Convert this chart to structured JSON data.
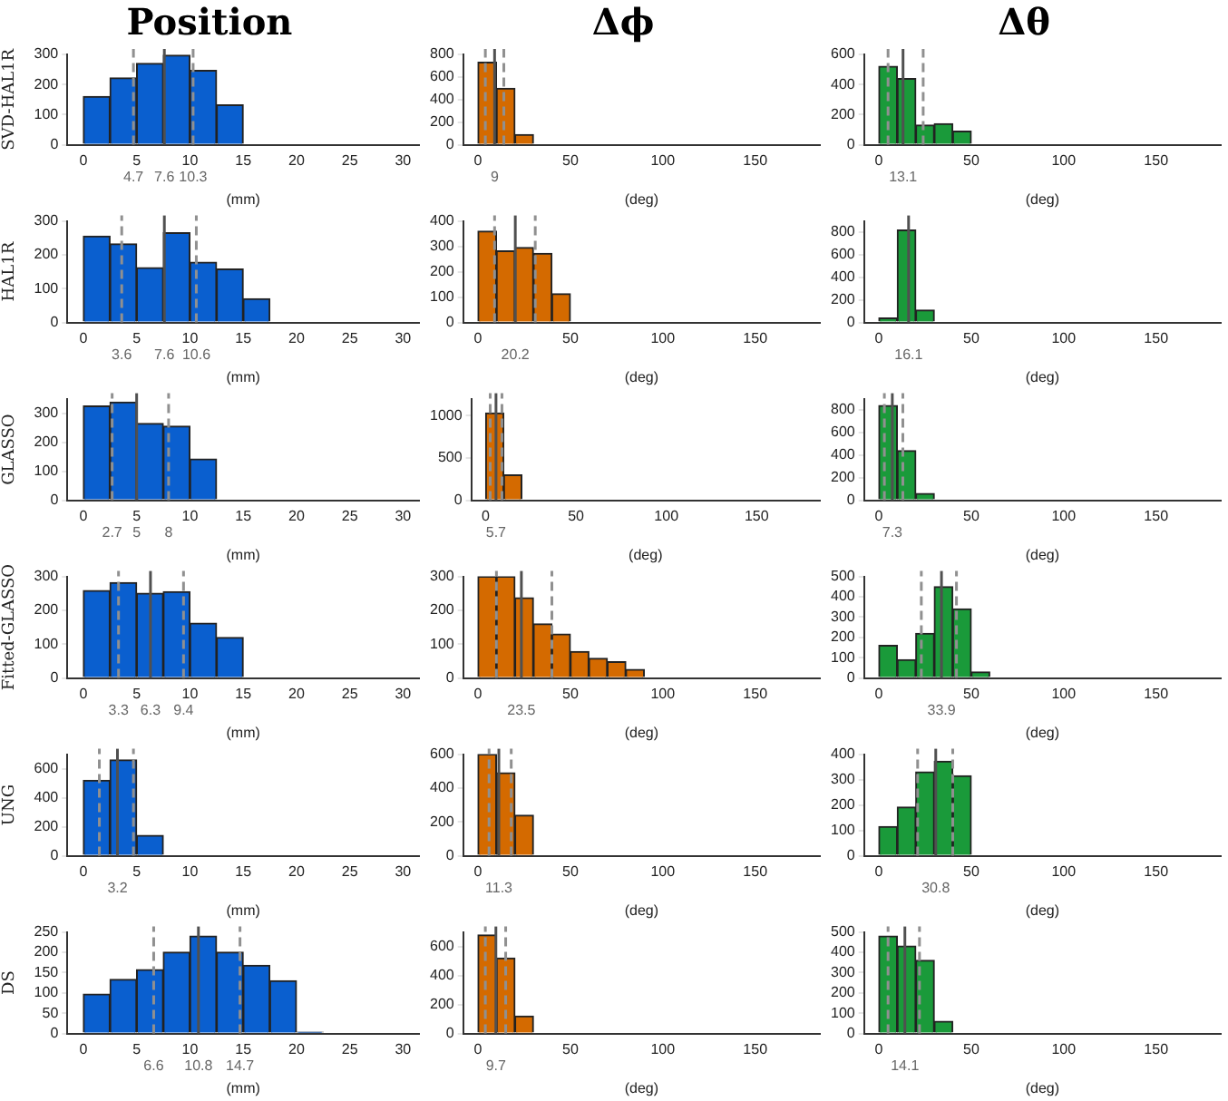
{
  "chart_data": [
    {
      "type": "histogram",
      "title": "Position",
      "ylabel": "SVD-HAL1R",
      "xlabel": "(mm)",
      "bins": [
        0,
        2.5,
        5,
        7.5,
        10,
        12.5,
        15
      ],
      "values": [
        160,
        222,
        270,
        297,
        247,
        132
      ],
      "color": "#0a5fcf",
      "xlim": [
        -1.5,
        31.5
      ],
      "xticks": [
        0,
        5,
        10,
        15,
        20,
        25,
        30
      ],
      "ylim": [
        0,
        300
      ],
      "yticks": [
        0,
        100,
        200,
        300
      ],
      "ref_lines": [
        {
          "axis": "x",
          "value": 4.7,
          "label": "4.7",
          "line_style": "dashed",
          "color": "#909090"
        },
        {
          "axis": "x",
          "value": 7.6,
          "label": "7.6",
          "line_style": "solid",
          "color": "#505050"
        },
        {
          "axis": "x",
          "value": 10.3,
          "label": "10.3",
          "line_style": "dashed",
          "color": "#909090"
        }
      ]
    },
    {
      "type": "histogram",
      "title": "Δϕ",
      "xlabel": "(deg)",
      "bins": [
        0,
        10,
        20,
        30
      ],
      "values": [
        730,
        500,
        90
      ],
      "color": "#d46a00",
      "xlim": [
        -8,
        185
      ],
      "xticks": [
        0,
        50,
        100,
        150
      ],
      "ylim": [
        0,
        800
      ],
      "yticks": [
        0,
        200,
        400,
        600,
        800
      ],
      "ref_lines": [
        {
          "axis": "x",
          "value": 4,
          "line_style": "dashed",
          "color": "#909090"
        },
        {
          "axis": "x",
          "value": 9,
          "label": "9",
          "line_style": "solid",
          "color": "#505050"
        },
        {
          "axis": "x",
          "value": 14,
          "line_style": "dashed",
          "color": "#909090"
        }
      ]
    },
    {
      "type": "histogram",
      "title": "Δθ",
      "xlabel": "(deg)",
      "bins": [
        0,
        10,
        20,
        30,
        40,
        50
      ],
      "values": [
        520,
        440,
        130,
        140,
        90
      ],
      "color": "#1a9a3a",
      "xlim": [
        -8,
        185
      ],
      "xticks": [
        0,
        50,
        100,
        150
      ],
      "ylim": [
        0,
        600
      ],
      "yticks": [
        0,
        200,
        400,
        600
      ],
      "ref_lines": [
        {
          "axis": "x",
          "value": 5,
          "line_style": "dashed",
          "color": "#909090"
        },
        {
          "axis": "x",
          "value": 13.1,
          "label": "13.1",
          "line_style": "solid",
          "color": "#505050"
        },
        {
          "axis": "x",
          "value": 24,
          "line_style": "dashed",
          "color": "#909090"
        }
      ]
    },
    {
      "type": "histogram",
      "ylabel": "HAL1R",
      "xlabel": "(mm)",
      "bins": [
        0,
        2.5,
        5,
        7.5,
        10,
        12.5,
        15,
        17.5
      ],
      "values": [
        255,
        232,
        162,
        265,
        178,
        158,
        70
      ],
      "color": "#0a5fcf",
      "xlim": [
        -1.5,
        31.5
      ],
      "xticks": [
        0,
        5,
        10,
        15,
        20,
        25,
        30
      ],
      "ylim": [
        0,
        300
      ],
      "yticks": [
        0,
        100,
        200,
        300
      ],
      "ref_lines": [
        {
          "axis": "x",
          "value": 3.6,
          "label": "3.6",
          "line_style": "dashed",
          "color": "#909090"
        },
        {
          "axis": "x",
          "value": 7.6,
          "label": "7.6",
          "line_style": "solid",
          "color": "#505050"
        },
        {
          "axis": "x",
          "value": 10.6,
          "label": "10.6",
          "line_style": "dashed",
          "color": "#909090"
        }
      ]
    },
    {
      "type": "histogram",
      "xlabel": "(deg)",
      "bins": [
        0,
        10,
        20,
        30,
        40,
        50
      ],
      "values": [
        360,
        282,
        295,
        272,
        113
      ],
      "color": "#d46a00",
      "xlim": [
        -8,
        185
      ],
      "xticks": [
        0,
        50,
        100,
        150
      ],
      "ylim": [
        0,
        400
      ],
      "yticks": [
        0,
        100,
        200,
        300,
        400
      ],
      "ref_lines": [
        {
          "axis": "x",
          "value": 9,
          "line_style": "dashed",
          "color": "#909090"
        },
        {
          "axis": "x",
          "value": 20.2,
          "label": "20.2",
          "line_style": "solid",
          "color": "#505050"
        },
        {
          "axis": "x",
          "value": 31,
          "line_style": "dashed",
          "color": "#909090"
        }
      ]
    },
    {
      "type": "histogram",
      "xlabel": "(deg)",
      "bins": [
        0,
        10,
        20,
        30
      ],
      "values": [
        40,
        820,
        110
      ],
      "color": "#1a9a3a",
      "xlim": [
        -8,
        185
      ],
      "xticks": [
        0,
        50,
        100,
        150
      ],
      "ylim": [
        0,
        900
      ],
      "yticks": [
        0,
        200,
        400,
        600,
        800
      ],
      "ref_lines": [
        {
          "axis": "x",
          "value": 16.1,
          "label": "16.1",
          "line_style": "solid",
          "color": "#505050"
        }
      ]
    },
    {
      "type": "histogram",
      "ylabel": "GLASSO",
      "xlabel": "(mm)",
      "bins": [
        0,
        2.5,
        5,
        7.5,
        10,
        12.5
      ],
      "values": [
        325,
        338,
        265,
        255,
        142
      ],
      "color": "#0a5fcf",
      "xlim": [
        -1.5,
        31.5
      ],
      "xticks": [
        0,
        5,
        10,
        15,
        20,
        25,
        30
      ],
      "ylim": [
        0,
        350
      ],
      "yticks": [
        0,
        100,
        200,
        300
      ],
      "ref_lines": [
        {
          "axis": "x",
          "value": 2.7,
          "label": "2.7",
          "line_style": "dashed",
          "color": "#909090"
        },
        {
          "axis": "x",
          "value": 5,
          "label": "5",
          "line_style": "solid",
          "color": "#505050"
        },
        {
          "axis": "x",
          "value": 8,
          "label": "8",
          "line_style": "dashed",
          "color": "#909090"
        }
      ]
    },
    {
      "type": "histogram",
      "xlabel": "(deg)",
      "bins": [
        0,
        10,
        20
      ],
      "values": [
        1030,
        300
      ],
      "color": "#d46a00",
      "xlim": [
        -8,
        185
      ],
      "xticks": [
        0,
        50,
        100,
        150
      ],
      "ylim": [
        0,
        1200
      ],
      "yticks": [
        0,
        500,
        1000
      ],
      "ref_lines": [
        {
          "axis": "x",
          "value": 2.5,
          "line_style": "dashed",
          "color": "#909090"
        },
        {
          "axis": "x",
          "value": 5.7,
          "label": "5.7",
          "line_style": "solid",
          "color": "#505050"
        },
        {
          "axis": "x",
          "value": 9,
          "line_style": "dashed",
          "color": "#909090"
        }
      ]
    },
    {
      "type": "histogram",
      "xlabel": "(deg)",
      "bins": [
        0,
        10,
        20,
        30
      ],
      "values": [
        840,
        440,
        60
      ],
      "color": "#1a9a3a",
      "xlim": [
        -8,
        185
      ],
      "xticks": [
        0,
        50,
        100,
        150
      ],
      "ylim": [
        0,
        900
      ],
      "yticks": [
        0,
        200,
        400,
        600,
        800
      ],
      "ref_lines": [
        {
          "axis": "x",
          "value": 3,
          "line_style": "dashed",
          "color": "#909090"
        },
        {
          "axis": "x",
          "value": 7.3,
          "label": "7.3",
          "line_style": "solid",
          "color": "#505050"
        },
        {
          "axis": "x",
          "value": 13,
          "line_style": "dashed",
          "color": "#909090"
        }
      ]
    },
    {
      "type": "histogram",
      "ylabel": "Fitted-GLASSO",
      "xlabel": "(mm)",
      "bins": [
        0,
        2.5,
        5,
        7.5,
        10,
        12.5,
        15
      ],
      "values": [
        258,
        282,
        250,
        255,
        162,
        120
      ],
      "color": "#0a5fcf",
      "xlim": [
        -1.5,
        31.5
      ],
      "xticks": [
        0,
        5,
        10,
        15,
        20,
        25,
        30
      ],
      "ylim": [
        0,
        300
      ],
      "yticks": [
        0,
        100,
        200,
        300
      ],
      "ref_lines": [
        {
          "axis": "x",
          "value": 3.3,
          "label": "3.3",
          "line_style": "dashed",
          "color": "#909090"
        },
        {
          "axis": "x",
          "value": 6.3,
          "label": "6.3",
          "line_style": "solid",
          "color": "#505050"
        },
        {
          "axis": "x",
          "value": 9.4,
          "label": "9.4",
          "line_style": "dashed",
          "color": "#909090"
        }
      ]
    },
    {
      "type": "histogram",
      "xlabel": "(deg)",
      "bins": [
        0,
        10,
        20,
        30,
        40,
        50,
        60,
        70,
        80,
        90
      ],
      "values": [
        300,
        300,
        237,
        160,
        130,
        78,
        58,
        48,
        25
      ],
      "color": "#d46a00",
      "xlim": [
        -8,
        185
      ],
      "xticks": [
        0,
        50,
        100,
        150
      ],
      "ylim": [
        0,
        300
      ],
      "yticks": [
        0,
        100,
        200,
        300
      ],
      "ref_lines": [
        {
          "axis": "x",
          "value": 10,
          "line_style": "dashed",
          "color": "#909090"
        },
        {
          "axis": "x",
          "value": 23.5,
          "label": "23.5",
          "line_style": "solid",
          "color": "#505050"
        },
        {
          "axis": "x",
          "value": 40,
          "line_style": "dashed",
          "color": "#909090"
        }
      ]
    },
    {
      "type": "histogram",
      "xlabel": "(deg)",
      "bins": [
        0,
        10,
        20,
        30,
        40,
        50,
        60
      ],
      "values": [
        160,
        90,
        220,
        450,
        340,
        30
      ],
      "color": "#1a9a3a",
      "xlim": [
        -8,
        185
      ],
      "xticks": [
        0,
        50,
        100,
        150
      ],
      "ylim": [
        0,
        500
      ],
      "yticks": [
        0,
        100,
        200,
        300,
        400,
        500
      ],
      "ref_lines": [
        {
          "axis": "x",
          "value": 23,
          "line_style": "dashed",
          "color": "#909090"
        },
        {
          "axis": "x",
          "value": 33.9,
          "label": "33.9",
          "line_style": "solid",
          "color": "#505050"
        },
        {
          "axis": "x",
          "value": 42,
          "line_style": "dashed",
          "color": "#909090"
        }
      ]
    },
    {
      "type": "histogram",
      "ylabel": "UNG",
      "xlabel": "(mm)",
      "bins": [
        0,
        2.5,
        5,
        7.5
      ],
      "values": [
        520,
        660,
        140
      ],
      "color": "#0a5fcf",
      "xlim": [
        -1.5,
        31.5
      ],
      "xticks": [
        0,
        5,
        10,
        15,
        20,
        25,
        30
      ],
      "ylim": [
        0,
        700
      ],
      "yticks": [
        0,
        200,
        400,
        600
      ],
      "ref_lines": [
        {
          "axis": "x",
          "value": 1.5,
          "line_style": "dashed",
          "color": "#909090"
        },
        {
          "axis": "x",
          "value": 3.2,
          "label": "3.2",
          "line_style": "solid",
          "color": "#505050"
        },
        {
          "axis": "x",
          "value": 4.7,
          "line_style": "dashed",
          "color": "#909090"
        }
      ]
    },
    {
      "type": "histogram",
      "xlabel": "(deg)",
      "bins": [
        0,
        10,
        20,
        30
      ],
      "values": [
        600,
        490,
        240
      ],
      "color": "#d46a00",
      "xlim": [
        -8,
        185
      ],
      "xticks": [
        0,
        50,
        100,
        150
      ],
      "ylim": [
        0,
        600
      ],
      "yticks": [
        0,
        200,
        400,
        600
      ],
      "ref_lines": [
        {
          "axis": "x",
          "value": 6,
          "line_style": "dashed",
          "color": "#909090"
        },
        {
          "axis": "x",
          "value": 11.3,
          "label": "11.3",
          "line_style": "solid",
          "color": "#505050"
        },
        {
          "axis": "x",
          "value": 18,
          "line_style": "dashed",
          "color": "#909090"
        }
      ]
    },
    {
      "type": "histogram",
      "xlabel": "(deg)",
      "bins": [
        0,
        10,
        20,
        30,
        40,
        50
      ],
      "values": [
        115,
        192,
        330,
        372,
        315
      ],
      "color": "#1a9a3a",
      "xlim": [
        -8,
        185
      ],
      "xticks": [
        0,
        50,
        100,
        150
      ],
      "ylim": [
        0,
        400
      ],
      "yticks": [
        0,
        100,
        200,
        300,
        400
      ],
      "ref_lines": [
        {
          "axis": "x",
          "value": 21,
          "line_style": "dashed",
          "color": "#909090"
        },
        {
          "axis": "x",
          "value": 30.8,
          "label": "30.8",
          "line_style": "solid",
          "color": "#505050"
        },
        {
          "axis": "x",
          "value": 40,
          "line_style": "dashed",
          "color": "#909090"
        }
      ]
    },
    {
      "type": "histogram",
      "ylabel": "DS",
      "xlabel": "(mm)",
      "bins": [
        0,
        2.5,
        5,
        7.5,
        10,
        12.5,
        15,
        17.5,
        20,
        22.5
      ],
      "values": [
        97,
        133,
        157,
        200,
        240,
        200,
        168,
        130,
        3
      ],
      "color": "#0a5fcf",
      "xlim": [
        -1.5,
        31.5
      ],
      "xticks": [
        0,
        5,
        10,
        15,
        20,
        25,
        30
      ],
      "ylim": [
        0,
        250
      ],
      "yticks": [
        0,
        50,
        100,
        150,
        200,
        250
      ],
      "ref_lines": [
        {
          "axis": "x",
          "value": 6.6,
          "label": "6.6",
          "line_style": "dashed",
          "color": "#909090"
        },
        {
          "axis": "x",
          "value": 10.8,
          "label": "10.8",
          "line_style": "solid",
          "color": "#505050"
        },
        {
          "axis": "x",
          "value": 14.7,
          "label": "14.7",
          "line_style": "dashed",
          "color": "#909090"
        }
      ]
    },
    {
      "type": "histogram",
      "xlabel": "(deg)",
      "bins": [
        0,
        10,
        20,
        30
      ],
      "values": [
        680,
        520,
        120
      ],
      "color": "#d46a00",
      "xlim": [
        -8,
        185
      ],
      "xticks": [
        0,
        50,
        100,
        150
      ],
      "ylim": [
        0,
        700
      ],
      "yticks": [
        0,
        200,
        400,
        600
      ],
      "ref_lines": [
        {
          "axis": "x",
          "value": 4,
          "line_style": "dashed",
          "color": "#909090"
        },
        {
          "axis": "x",
          "value": 9.7,
          "label": "9.7",
          "line_style": "solid",
          "color": "#505050"
        },
        {
          "axis": "x",
          "value": 15,
          "line_style": "dashed",
          "color": "#909090"
        }
      ]
    },
    {
      "type": "histogram",
      "xlabel": "(deg)",
      "bins": [
        0,
        10,
        20,
        30,
        40
      ],
      "values": [
        480,
        430,
        360,
        60
      ],
      "color": "#1a9a3a",
      "xlim": [
        -8,
        185
      ],
      "xticks": [
        0,
        50,
        100,
        150
      ],
      "ylim": [
        0,
        500
      ],
      "yticks": [
        0,
        100,
        200,
        300,
        400,
        500
      ],
      "ref_lines": [
        {
          "axis": "x",
          "value": 5,
          "line_style": "dashed",
          "color": "#909090"
        },
        {
          "axis": "x",
          "value": 14.1,
          "label": "14.1",
          "line_style": "solid",
          "color": "#505050"
        },
        {
          "axis": "x",
          "value": 22,
          "line_style": "dashed",
          "color": "#909090"
        }
      ]
    }
  ]
}
